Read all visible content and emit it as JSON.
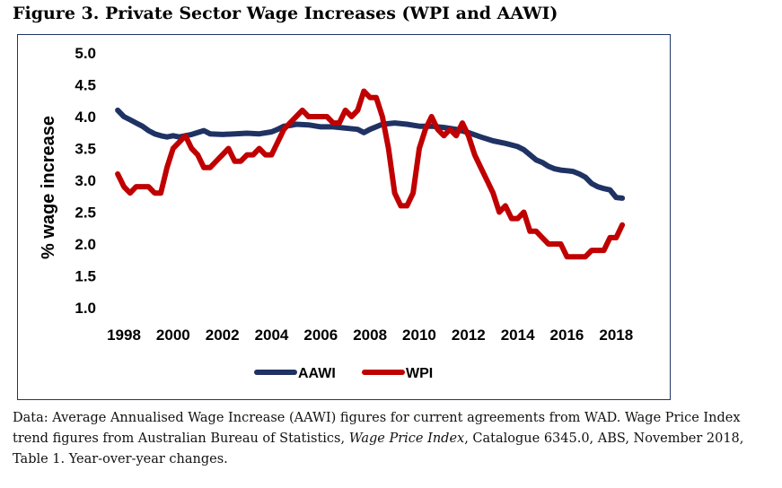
{
  "figure": {
    "title": "Figure 3. Private Sector Wage Increases (WPI and AAWI)"
  },
  "caption": {
    "part1": "Data: Average Annualised Wage Increase (AAWI) figures for current agreements from WAD. Wage Price Index trend figures from Australian Bureau of Statistics, ",
    "italic": "Wage Price Index",
    "part2": ", Catalogue 6345.0, ABS, November 2018, Table 1. Year-over-year changes."
  },
  "colors": {
    "aawi": "#1f3264",
    "wpi": "#c00000"
  },
  "chart_data": {
    "type": "line",
    "title": "",
    "xlabel": "",
    "ylabel": "% wage increase",
    "xlim": [
      1998,
      2018.5
    ],
    "ylim": [
      1.0,
      5.0
    ],
    "x_ticks": [
      "1998",
      "2000",
      "2002",
      "2004",
      "2006",
      "2008",
      "2010",
      "2012",
      "2014",
      "2016",
      "2018"
    ],
    "y_ticks": [
      "1.0",
      "1.5",
      "2.0",
      "2.5",
      "3.0",
      "3.5",
      "4.0",
      "4.5",
      "5.0"
    ],
    "legend": {
      "position": "bottom",
      "entries": [
        "AAWI",
        "WPI"
      ]
    },
    "series": [
      {
        "name": "AAWI",
        "points": [
          [
            1997.75,
            4.1
          ],
          [
            1998.0,
            4.0
          ],
          [
            1998.25,
            3.95
          ],
          [
            1998.5,
            3.9
          ],
          [
            1998.75,
            3.85
          ],
          [
            1999.0,
            3.78
          ],
          [
            1999.25,
            3.73
          ],
          [
            1999.5,
            3.7
          ],
          [
            1999.75,
            3.68
          ],
          [
            2000.0,
            3.7
          ],
          [
            2000.25,
            3.68
          ],
          [
            2000.5,
            3.7
          ],
          [
            2000.75,
            3.72
          ],
          [
            2001.0,
            3.75
          ],
          [
            2001.25,
            3.78
          ],
          [
            2001.5,
            3.73
          ],
          [
            2002.0,
            3.72
          ],
          [
            2002.5,
            3.73
          ],
          [
            2003.0,
            3.74
          ],
          [
            2003.5,
            3.73
          ],
          [
            2004.0,
            3.76
          ],
          [
            2004.25,
            3.8
          ],
          [
            2004.5,
            3.85
          ],
          [
            2004.75,
            3.86
          ],
          [
            2005.0,
            3.88
          ],
          [
            2005.5,
            3.87
          ],
          [
            2006.0,
            3.84
          ],
          [
            2006.5,
            3.84
          ],
          [
            2007.0,
            3.82
          ],
          [
            2007.5,
            3.8
          ],
          [
            2007.75,
            3.75
          ],
          [
            2008.0,
            3.8
          ],
          [
            2008.5,
            3.88
          ],
          [
            2009.0,
            3.9
          ],
          [
            2009.5,
            3.88
          ],
          [
            2010.0,
            3.85
          ],
          [
            2010.5,
            3.85
          ],
          [
            2011.0,
            3.83
          ],
          [
            2011.5,
            3.8
          ],
          [
            2012.0,
            3.75
          ],
          [
            2012.5,
            3.68
          ],
          [
            2013.0,
            3.62
          ],
          [
            2013.5,
            3.58
          ],
          [
            2014.0,
            3.53
          ],
          [
            2014.25,
            3.48
          ],
          [
            2014.5,
            3.4
          ],
          [
            2014.75,
            3.32
          ],
          [
            2015.0,
            3.28
          ],
          [
            2015.25,
            3.22
          ],
          [
            2015.5,
            3.18
          ],
          [
            2015.75,
            3.16
          ],
          [
            2016.0,
            3.15
          ],
          [
            2016.25,
            3.14
          ],
          [
            2016.5,
            3.1
          ],
          [
            2016.75,
            3.05
          ],
          [
            2017.0,
            2.95
          ],
          [
            2017.25,
            2.9
          ],
          [
            2017.5,
            2.87
          ],
          [
            2017.75,
            2.85
          ],
          [
            2018.0,
            2.73
          ],
          [
            2018.25,
            2.72
          ]
        ]
      },
      {
        "name": "WPI",
        "points": [
          [
            1997.75,
            3.1
          ],
          [
            1998.0,
            2.9
          ],
          [
            1998.25,
            2.8
          ],
          [
            1998.5,
            2.9
          ],
          [
            1999.0,
            2.9
          ],
          [
            1999.25,
            2.8
          ],
          [
            1999.5,
            2.8
          ],
          [
            1999.75,
            3.2
          ],
          [
            2000.0,
            3.5
          ],
          [
            2000.25,
            3.6
          ],
          [
            2000.5,
            3.7
          ],
          [
            2000.75,
            3.5
          ],
          [
            2001.0,
            3.4
          ],
          [
            2001.25,
            3.2
          ],
          [
            2001.5,
            3.2
          ],
          [
            2001.75,
            3.3
          ],
          [
            2002.0,
            3.4
          ],
          [
            2002.25,
            3.5
          ],
          [
            2002.5,
            3.3
          ],
          [
            2002.75,
            3.3
          ],
          [
            2003.0,
            3.4
          ],
          [
            2003.25,
            3.4
          ],
          [
            2003.5,
            3.5
          ],
          [
            2003.75,
            3.4
          ],
          [
            2004.0,
            3.4
          ],
          [
            2004.25,
            3.6
          ],
          [
            2004.5,
            3.8
          ],
          [
            2004.75,
            3.9
          ],
          [
            2005.0,
            4.0
          ],
          [
            2005.25,
            4.1
          ],
          [
            2005.5,
            4.0
          ],
          [
            2006.0,
            4.0
          ],
          [
            2006.25,
            4.0
          ],
          [
            2006.5,
            3.9
          ],
          [
            2006.75,
            3.9
          ],
          [
            2007.0,
            4.1
          ],
          [
            2007.25,
            4.0
          ],
          [
            2007.5,
            4.1
          ],
          [
            2007.75,
            4.4
          ],
          [
            2008.0,
            4.3
          ],
          [
            2008.25,
            4.3
          ],
          [
            2008.5,
            4.0
          ],
          [
            2008.75,
            3.5
          ],
          [
            2009.0,
            2.8
          ],
          [
            2009.25,
            2.6
          ],
          [
            2009.5,
            2.6
          ],
          [
            2009.75,
            2.8
          ],
          [
            2010.0,
            3.5
          ],
          [
            2010.25,
            3.8
          ],
          [
            2010.5,
            4.0
          ],
          [
            2010.75,
            3.8
          ],
          [
            2011.0,
            3.7
          ],
          [
            2011.25,
            3.8
          ],
          [
            2011.5,
            3.7
          ],
          [
            2011.75,
            3.9
          ],
          [
            2012.0,
            3.7
          ],
          [
            2012.25,
            3.4
          ],
          [
            2012.5,
            3.2
          ],
          [
            2012.75,
            3.0
          ],
          [
            2013.0,
            2.8
          ],
          [
            2013.25,
            2.5
          ],
          [
            2013.5,
            2.6
          ],
          [
            2013.75,
            2.4
          ],
          [
            2014.0,
            2.4
          ],
          [
            2014.25,
            2.5
          ],
          [
            2014.5,
            2.2
          ],
          [
            2014.75,
            2.2
          ],
          [
            2015.0,
            2.1
          ],
          [
            2015.25,
            2.0
          ],
          [
            2015.5,
            2.0
          ],
          [
            2015.75,
            2.0
          ],
          [
            2016.0,
            1.8
          ],
          [
            2016.25,
            1.8
          ],
          [
            2016.5,
            1.8
          ],
          [
            2016.75,
            1.8
          ],
          [
            2017.0,
            1.9
          ],
          [
            2017.25,
            1.9
          ],
          [
            2017.5,
            1.9
          ],
          [
            2017.75,
            2.1
          ],
          [
            2018.0,
            2.1
          ],
          [
            2018.25,
            2.3
          ]
        ]
      }
    ]
  }
}
